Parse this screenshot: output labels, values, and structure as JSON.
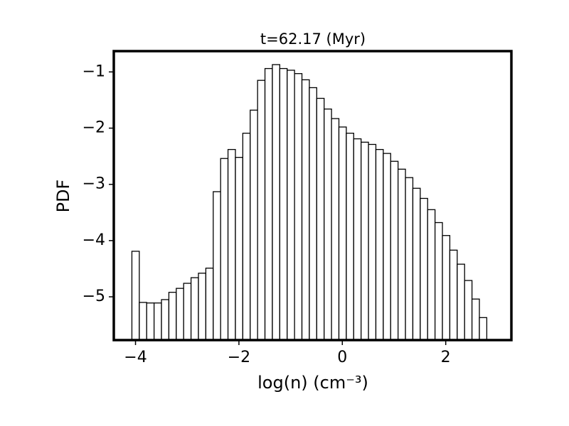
{
  "chart_data": {
    "type": "histogram",
    "title": "t=62.17 (Myr)",
    "x_label": "log(n) (cm⁻³)",
    "y_label": "PDF",
    "bins": [
      -4.07,
      -3.927,
      -3.784,
      -3.641,
      -3.498,
      -3.355,
      -3.212,
      -3.069,
      -2.926,
      -2.783,
      -2.64,
      -2.497,
      -2.354,
      -2.211,
      -2.068,
      -1.925,
      -1.782,
      -1.639,
      -1.496,
      -1.353,
      -1.21,
      -1.067,
      -0.924,
      -0.781,
      -0.638,
      -0.495,
      -0.352,
      -0.209,
      -0.066,
      0.077,
      0.22,
      0.363,
      0.506,
      0.649,
      0.792,
      0.935,
      1.078,
      1.221,
      1.364,
      1.507,
      1.65,
      1.793,
      1.936,
      2.079,
      2.222,
      2.365,
      2.508,
      2.651,
      2.794
    ],
    "values": [
      -4.19,
      -5.1,
      -5.11,
      -5.11,
      -5.05,
      -4.92,
      -4.85,
      -4.76,
      -4.66,
      -4.58,
      -4.49,
      -3.13,
      -2.54,
      -2.38,
      -2.52,
      -2.09,
      -1.68,
      -1.15,
      -0.94,
      -0.87,
      -0.94,
      -0.97,
      -1.03,
      -1.14,
      -1.28,
      -1.47,
      -1.66,
      -1.83,
      -1.98,
      -2.09,
      -2.19,
      -2.25,
      -2.29,
      -2.38,
      -2.45,
      -2.59,
      -2.73,
      -2.88,
      -3.07,
      -3.25,
      -3.45,
      -3.68,
      -3.91,
      -4.17,
      -4.42,
      -4.71,
      -5.04,
      -5.37
    ],
    "color": "#ffffff",
    "edgecolor": "#000000",
    "xlim": [
      -4.42,
      3.27
    ],
    "ylim": [
      -5.77,
      -0.63
    ],
    "xticks": [
      {
        "value": -4,
        "label": "−4"
      },
      {
        "value": -2,
        "label": "−2"
      },
      0,
      2
    ],
    "yticks": [
      {
        "value": -5,
        "label": "−5"
      },
      {
        "value": -4,
        "label": "−4"
      },
      {
        "value": -3,
        "label": "−3"
      },
      {
        "value": -2,
        "label": "−2"
      },
      {
        "value": -1,
        "label": "−1"
      }
    ]
  }
}
